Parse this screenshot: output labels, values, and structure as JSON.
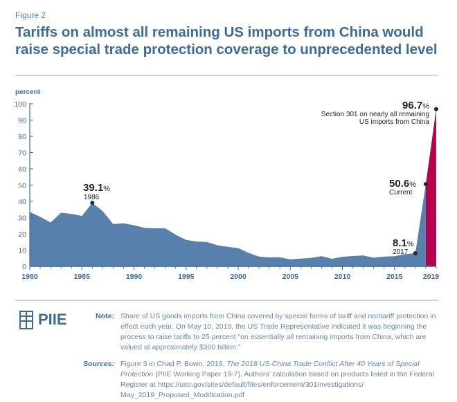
{
  "figure_label": "Figure 2",
  "title": "Tariffs on almost all remaining US imports from China would raise special trade protection coverage to unprecedented level",
  "chart_data": {
    "type": "area",
    "ylabel": "percent",
    "ylim": [
      0,
      100
    ],
    "yticks": [
      0,
      10,
      20,
      30,
      40,
      50,
      60,
      70,
      80,
      90,
      100
    ],
    "xticks": [
      "1980",
      "1985",
      "1990",
      "1995",
      "2000",
      "2005",
      "2010",
      "2015",
      "2019"
    ],
    "grid": false,
    "x": [
      1980,
      1981,
      1982,
      1983,
      1984,
      1985,
      1986,
      1987,
      1988,
      1989,
      1990,
      1991,
      1992,
      1993,
      1994,
      1995,
      1996,
      1997,
      1998,
      1999,
      2000,
      2001,
      2002,
      2003,
      2004,
      2005,
      2006,
      2007,
      2008,
      2009,
      2010,
      2011,
      2012,
      2013,
      2014,
      2015,
      2016,
      2017,
      "Current"
    ],
    "values": [
      33.5,
      30.5,
      27,
      33,
      32.3,
      31,
      39.1,
      34,
      26,
      26.5,
      25.3,
      23.7,
      23.4,
      23.4,
      19.5,
      16.3,
      15.3,
      15,
      13,
      12,
      11.2,
      8.3,
      6,
      5.5,
      5.6,
      4.3,
      4.8,
      5.2,
      6.3,
      4.7,
      5.9,
      6.4,
      6.7,
      5.3,
      6,
      6.3,
      7.5,
      8.1,
      50.6
    ],
    "proposed_value": 96.7,
    "colors": {
      "historical": "#5880ad",
      "proposed": "#b8004f",
      "axis": "#3d6b98"
    },
    "annotations": [
      {
        "value": "39.1",
        "unit": "%",
        "label": "1986"
      },
      {
        "value": "8.1",
        "unit": "%",
        "label": "2017"
      },
      {
        "value": "50.6",
        "unit": "%",
        "label": "Current"
      },
      {
        "value": "96.7",
        "unit": "%",
        "label_lines": [
          "Section 301 on nearly all remaining",
          "US imports from China"
        ]
      }
    ]
  },
  "logo": "PIIE",
  "note": {
    "label": "Note:",
    "text": "Share of US goods imports from China covered by special forms of tariff and nontariff protection in effect each year. On May 10, 2019, the US Trade Representative indicated it was beginning the process to raise tariffs to 25 percent “on essentially all remaining imports from China, which are valued at approximately $300 billion.”"
  },
  "sources": {
    "label": "Sources:",
    "pre": "Figure 3 in Chad P. Bown, 2019, ",
    "italic": "The 2018 US-China Trade Conflict After 40 Years of Special Protection",
    "post": " (PIIE Working Paper 19-7). Authors’ calculation based on products listed in the Federal Register at https://ustr.gov/sites/default/files/enforcement/301Investigations/ May_2019_Proposed_Modification.pdf"
  }
}
